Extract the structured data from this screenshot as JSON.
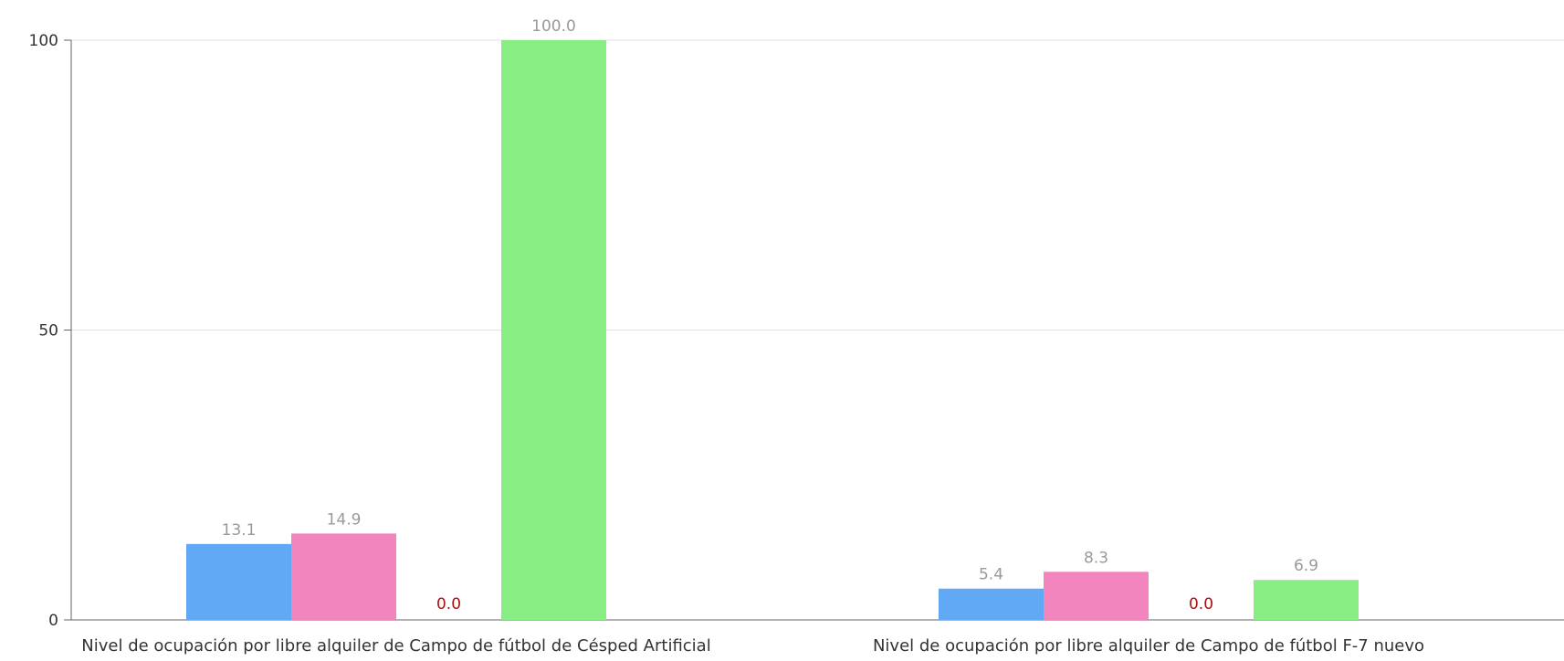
{
  "chart_data": {
    "type": "bar",
    "title": "",
    "xlabel": "",
    "ylabel": "",
    "ylim": [
      0,
      100
    ],
    "yticks": [
      0,
      50,
      100
    ],
    "grid": true,
    "legend": "none",
    "categories": [
      "Nivel de ocupación por libre alquiler de Campo de fútbol de Césped Artificial",
      "Nivel de ocupación por libre alquiler de Campo de fútbol F-7 nuevo"
    ],
    "series": [
      {
        "color": "#62a9f5",
        "values": [
          13.1,
          5.4
        ],
        "labels": [
          "13.1",
          "5.4"
        ]
      },
      {
        "color": "#f285bd",
        "values": [
          14.9,
          8.3
        ],
        "labels": [
          "14.9",
          "8.3"
        ]
      },
      {
        "color": "#e06060",
        "values": [
          0.0,
          0.0
        ],
        "labels": [
          "0.0",
          "0.0"
        ]
      },
      {
        "color": "#88ed82",
        "values": [
          100.0,
          6.9
        ],
        "labels": [
          "100.0",
          "6.9"
        ]
      }
    ],
    "colors": {
      "data_label": "#999999",
      "zero_label": "#aa1111",
      "grid": "#e0e0e0",
      "axis": "#666666"
    }
  }
}
